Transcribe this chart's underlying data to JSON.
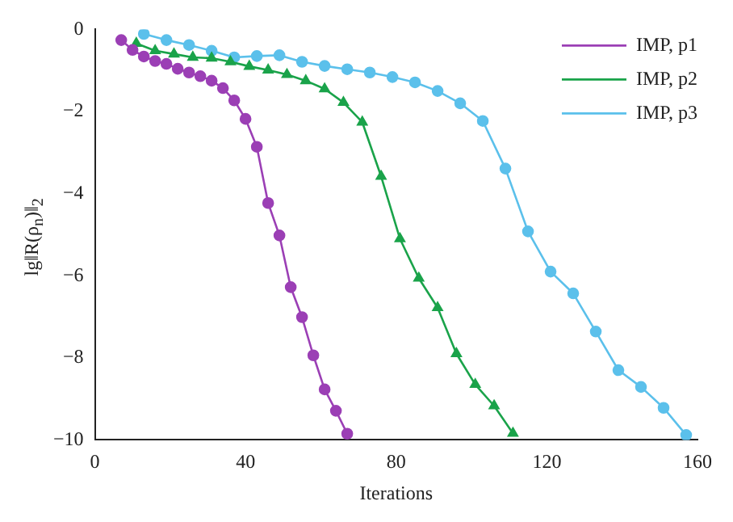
{
  "chart_data": {
    "type": "line",
    "xlabel": "Iterations",
    "ylabel": "lg‖R(ρ$_{n}$)‖$_{2}$",
    "xlim": [
      0,
      160
    ],
    "xticks": [
      0,
      40,
      80,
      120,
      160
    ],
    "ylim": [
      -10,
      0
    ],
    "yticks": [
      {
        "value": -10,
        "label": "−10"
      },
      {
        "value": -8,
        "label": "−8"
      },
      {
        "value": -6,
        "label": "−6"
      },
      {
        "value": -4,
        "label": "−4"
      },
      {
        "value": -2,
        "label": "−2"
      },
      {
        "value": 0,
        "label": "0"
      }
    ],
    "grid": false,
    "legend": "top right",
    "line_style": "solid",
    "series": [
      {
        "name": "IMP, p1",
        "color": "#9b3fb5",
        "marker": "circle",
        "x": [
          7,
          10,
          13,
          16,
          19,
          22,
          25,
          28,
          31,
          34,
          37,
          40,
          43,
          46,
          49,
          52,
          55,
          58,
          61,
          64,
          67
        ],
        "values": [
          -0.26,
          -0.5,
          -0.66,
          -0.77,
          -0.84,
          -0.96,
          -1.05,
          -1.14,
          -1.25,
          -1.43,
          -1.73,
          -2.18,
          -2.86,
          -4.23,
          -5.02,
          -6.28,
          -7.01,
          -7.94,
          -8.77,
          -9.29,
          -9.85
        ]
      },
      {
        "name": "IMP, p2",
        "color": "#1aa34a",
        "marker": "triangle",
        "x": [
          11,
          16,
          21,
          26,
          31,
          36,
          41,
          46,
          51,
          56,
          61,
          66,
          71,
          76,
          81,
          86,
          91,
          96,
          101,
          106,
          111
        ],
        "values": [
          -0.34,
          -0.52,
          -0.6,
          -0.68,
          -0.7,
          -0.79,
          -0.9,
          -0.99,
          -1.1,
          -1.25,
          -1.45,
          -1.78,
          -2.26,
          -3.58,
          -5.1,
          -6.06,
          -6.78,
          -7.9,
          -8.65,
          -9.17,
          -9.84
        ]
      },
      {
        "name": "IMP, p3",
        "color": "#5bc0eb",
        "marker": "circle",
        "x": [
          13,
          19,
          25,
          31,
          37,
          43,
          49,
          55,
          61,
          67,
          73,
          79,
          85,
          91,
          97,
          103,
          109,
          115,
          121,
          127,
          133,
          139,
          145,
          151,
          157
        ],
        "values": [
          -0.11,
          -0.26,
          -0.38,
          -0.52,
          -0.68,
          -0.65,
          -0.63,
          -0.79,
          -0.89,
          -0.97,
          -1.05,
          -1.16,
          -1.29,
          -1.5,
          -1.8,
          -2.23,
          -3.39,
          -4.92,
          -5.9,
          -6.43,
          -7.36,
          -8.3,
          -8.71,
          -9.22,
          -9.88
        ]
      }
    ]
  }
}
